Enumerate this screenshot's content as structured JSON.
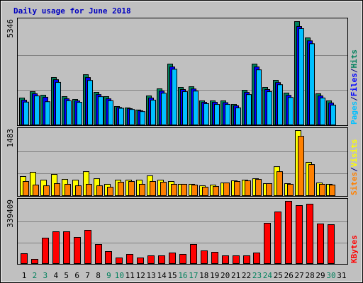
{
  "chart_data": [
    {
      "type": "bar",
      "title": "Daily usage for June 2018",
      "separator": "/",
      "ylim": [
        0,
        5346
      ],
      "yticks": [
        5346
      ],
      "series": [
        {
          "name": "Hits",
          "color": "#00805c",
          "values": [
            1391,
            1720,
            1537,
            2452,
            1464,
            1318,
            2599,
            1684,
            1464,
            952,
            878,
            769,
            1501,
            1867,
            3148,
            1940,
            1976,
            1244,
            1244,
            1244,
            1061,
            1793,
            3148,
            1940,
            2306,
            1647,
            5346,
            4503,
            1610,
            1244,
            null
          ]
        },
        {
          "name": "Files",
          "color": "#0000ff",
          "values": [
            1280,
            1610,
            1430,
            2340,
            1350,
            1240,
            2450,
            1570,
            1350,
            900,
            840,
            730,
            1390,
            1750,
            3000,
            1830,
            1860,
            1170,
            1170,
            1150,
            990,
            1680,
            3000,
            1830,
            2190,
            1530,
            5090,
            4350,
            1500,
            1130,
            null
          ]
        },
        {
          "name": "Pages",
          "color": "#00c0ff",
          "values": [
            1180,
            1500,
            1200,
            2200,
            1250,
            1170,
            2300,
            1460,
            1250,
            860,
            800,
            690,
            1280,
            1640,
            2880,
            1720,
            1750,
            1100,
            1060,
            1060,
            880,
            1570,
            2850,
            1720,
            2080,
            1420,
            4980,
            4200,
            1390,
            1020,
            null
          ]
        }
      ]
    },
    {
      "type": "bar",
      "separator": "/",
      "ylim": [
        0,
        1483
      ],
      "yticks": [
        1483
      ],
      "series": [
        {
          "name": "Visits",
          "color": "#ffff00",
          "values": [
            435,
            531,
            354,
            483,
            370,
            354,
            547,
            386,
            258,
            354,
            354,
            354,
            451,
            354,
            322,
            258,
            258,
            225,
            242,
            290,
            338,
            354,
            386,
            274,
            660,
            274,
            1483,
            757,
            290,
            258,
            null
          ]
        },
        {
          "name": "Sites",
          "color": "#ff8000",
          "values": [
            322,
            242,
            225,
            274,
            258,
            225,
            258,
            225,
            193,
            306,
            322,
            258,
            322,
            306,
            258,
            258,
            242,
            193,
            209,
            290,
            322,
            338,
            370,
            274,
            547,
            258,
            1352,
            708,
            258,
            242,
            null
          ]
        }
      ]
    },
    {
      "type": "bar",
      "ylim": [
        0,
        339409
      ],
      "yticks": [
        339409
      ],
      "categories": [
        "1",
        "2",
        "3",
        "4",
        "5",
        "6",
        "7",
        "8",
        "9",
        "10",
        "11",
        "12",
        "13",
        "14",
        "15",
        "16",
        "17",
        "18",
        "19",
        "20",
        "21",
        "22",
        "23",
        "24",
        "25",
        "26",
        "27",
        "28",
        "29",
        "30",
        "31"
      ],
      "category_colors": [
        "#000000",
        "#00805c",
        "#00805c",
        "#000000",
        "#000000",
        "#000000",
        "#000000",
        "#000000",
        "#00805c",
        "#00805c",
        "#000000",
        "#000000",
        "#000000",
        "#000000",
        "#000000",
        "#00805c",
        "#00805c",
        "#000000",
        "#000000",
        "#000000",
        "#000000",
        "#000000",
        "#00805c",
        "#00805c",
        "#000000",
        "#000000",
        "#000000",
        "#000000",
        "#000000",
        "#00805c",
        "#000000"
      ],
      "series": [
        {
          "name": "KBytes",
          "color": "#ff0000",
          "values": [
            54000,
            23142,
            138852,
            173565,
            173565,
            142709,
            181279,
            104139,
            65569,
            30856,
            50141,
            30856,
            42427,
            42427,
            57855,
            50141,
            104139,
            69426,
            61712,
            42427,
            42427,
            42427,
            57855,
            219849,
            281561,
            339409,
            316267,
            323981,
            215992,
            212135,
            null
          ]
        }
      ]
    }
  ]
}
